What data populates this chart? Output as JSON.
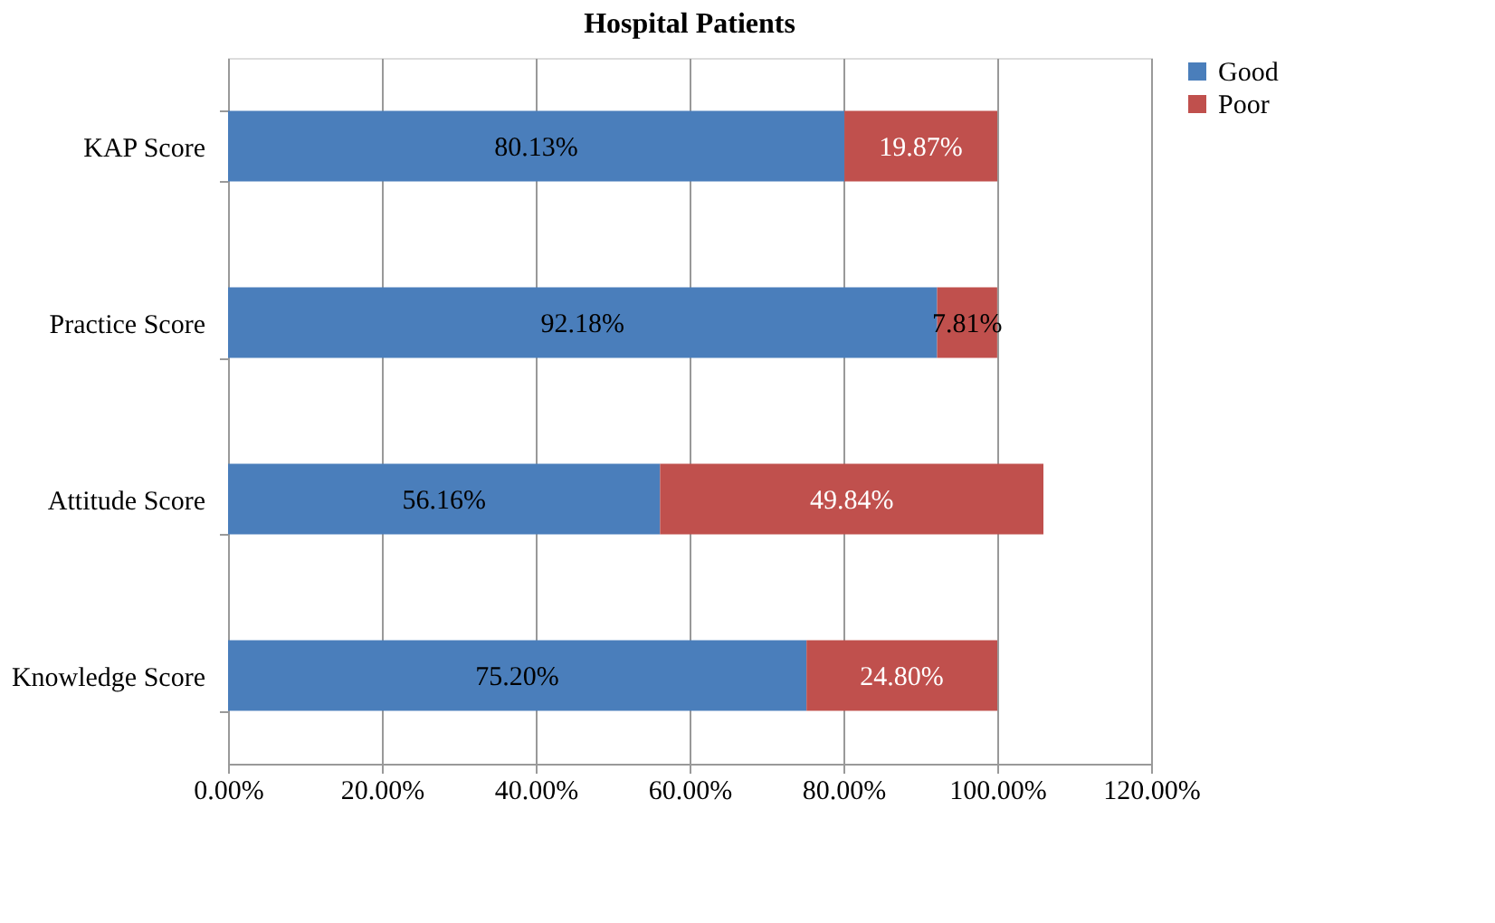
{
  "chart_data": {
    "type": "bar",
    "orientation": "horizontal",
    "stacked": true,
    "title": "Hospital Patients",
    "categories": [
      "KAP Score",
      "Practice Score",
      "Attitude Score",
      "Knowledge Score"
    ],
    "series": [
      {
        "name": "Good",
        "color": "#4a7ebb",
        "values": [
          80.13,
          92.18,
          56.16,
          75.2
        ],
        "value_labels": [
          "80.13%",
          "92.18%",
          "56.16%",
          "75.20%"
        ]
      },
      {
        "name": "Poor",
        "color": "#c0504d",
        "values": [
          19.87,
          7.81,
          49.84,
          24.8
        ],
        "value_labels": [
          "19.87%",
          "7.81%",
          "49.84%",
          "24.80%"
        ]
      }
    ],
    "xlim": [
      0,
      120
    ],
    "xticks": [
      {
        "value": 0,
        "label": "0.00%"
      },
      {
        "value": 20,
        "label": "20.00%"
      },
      {
        "value": 40,
        "label": "40.00%"
      },
      {
        "value": 60,
        "label": "60.00%"
      },
      {
        "value": 80,
        "label": "80.00%"
      },
      {
        "value": 100,
        "label": "100.00%"
      },
      {
        "value": 120,
        "label": "120.00%"
      }
    ],
    "grid": "x",
    "legend": "right"
  }
}
